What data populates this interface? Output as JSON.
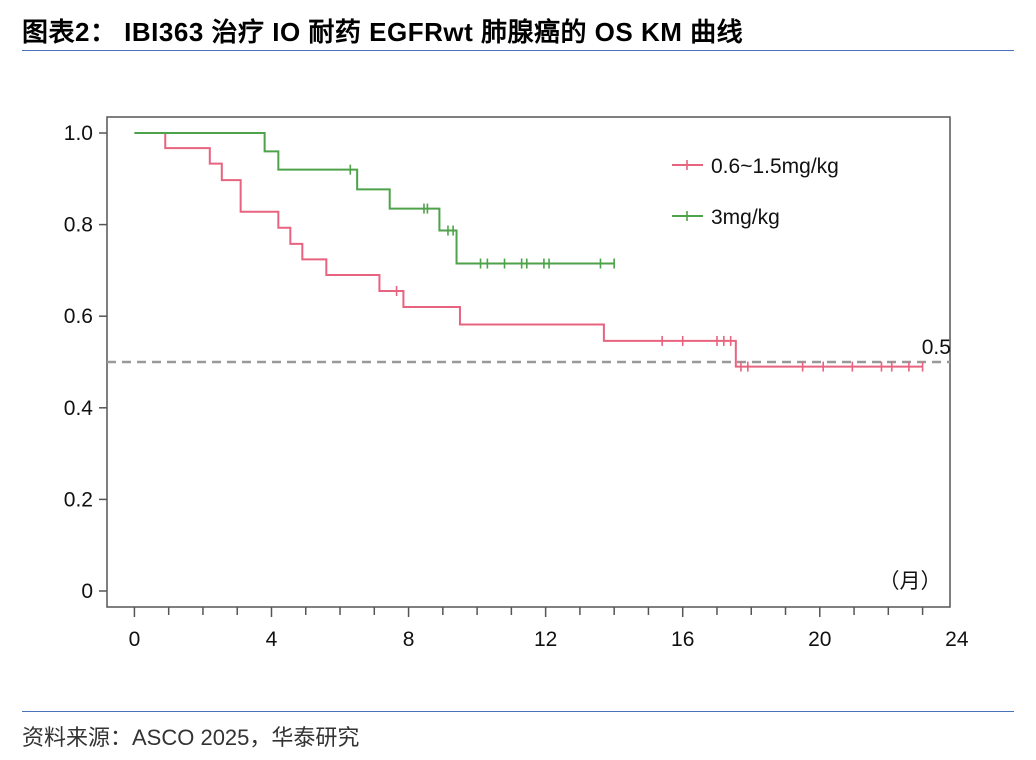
{
  "figure": {
    "title": "图表2： IBI363 治疗 IO 耐药 EGFRwt 肺腺癌的 OS KM 曲线",
    "source": "资料来源：ASCO 2025，华泰研究"
  },
  "chart_data": {
    "type": "line",
    "subtype": "kaplan-meier step",
    "title": "",
    "xlabel": "（月）",
    "ylabel": "",
    "xlim": [
      -0.8,
      23.8
    ],
    "ylim": [
      0,
      1.0
    ],
    "x_ticks": [
      0,
      4,
      8,
      12,
      16,
      20,
      24
    ],
    "y_ticks": [
      0,
      0.2,
      0.4,
      0.6,
      0.8,
      1.0
    ],
    "y_tick_labels": [
      "0",
      "0.2",
      "0.4",
      "0.6",
      "0.8",
      "1.0"
    ],
    "grid": false,
    "legend_position": "top-right",
    "reference_line": {
      "y": 0.5,
      "label": "0.5",
      "style": "dashed",
      "color": "#999999"
    },
    "series": [
      {
        "name": "0.6~1.5mg/kg",
        "color": "#e8637f",
        "steps": [
          [
            0,
            1.0
          ],
          [
            0.9,
            0.967
          ],
          [
            2.2,
            0.933
          ],
          [
            2.55,
            0.897
          ],
          [
            3.1,
            0.828
          ],
          [
            4.2,
            0.793
          ],
          [
            4.55,
            0.758
          ],
          [
            4.9,
            0.724
          ],
          [
            5.6,
            0.69
          ],
          [
            7.15,
            0.655
          ],
          [
            7.85,
            0.62
          ],
          [
            9.5,
            0.582
          ],
          [
            13.7,
            0.546
          ],
          [
            17.55,
            0.49
          ],
          [
            23.0,
            0.49
          ]
        ],
        "censored": [
          7.65,
          15.4,
          16.0,
          17.0,
          17.2,
          17.4,
          17.7,
          17.9,
          19.5,
          20.1,
          20.95,
          21.8,
          22.1,
          22.6,
          23.0
        ]
      },
      {
        "name": "3mg/kg",
        "color": "#4ea24a",
        "steps": [
          [
            0,
            1.0
          ],
          [
            3.8,
            0.96
          ],
          [
            4.2,
            0.92
          ],
          [
            6.5,
            0.877
          ],
          [
            7.45,
            0.835
          ],
          [
            8.9,
            0.787
          ],
          [
            9.4,
            0.715
          ],
          [
            14.0,
            0.715
          ]
        ],
        "censored": [
          6.3,
          8.45,
          8.55,
          9.15,
          9.3,
          10.1,
          10.3,
          10.8,
          11.3,
          11.45,
          11.95,
          12.1,
          13.6,
          14.0
        ]
      }
    ]
  }
}
